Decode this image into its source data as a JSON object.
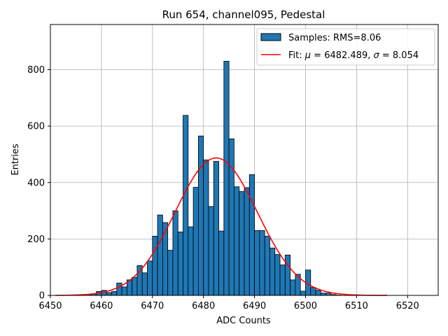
{
  "chart_data": {
    "type": "bar",
    "title": "Run 654, channel095, Pedestal",
    "xlabel": "ADC Counts",
    "ylabel": "Entries",
    "xlim": [
      6450,
      6526
    ],
    "ylim": [
      0,
      960
    ],
    "xticks": [
      6450,
      6460,
      6470,
      6480,
      6490,
      6500,
      6510,
      6520
    ],
    "yticks": [
      0,
      200,
      400,
      600,
      800
    ],
    "grid": true,
    "legend": {
      "placement": "top-right",
      "samples_label": "Samples: RMS=8.06",
      "fit_prefix": "Fit: ",
      "fit_mu_symbol": "μ",
      "fit_mu_value": " = 6482.489, ",
      "fit_sigma_symbol": "σ",
      "fit_sigma_value": " = 8.054"
    },
    "histogram": {
      "name": "Samples: RMS=8.06",
      "color": "#1f77b4",
      "edge_color": "#000000",
      "bin_edges_start": 6457,
      "bin_width": 1,
      "counts": [
        3,
        5,
        14,
        18,
        10,
        14,
        44,
        30,
        55,
        64,
        106,
        80,
        122,
        210,
        285,
        258,
        160,
        300,
        225,
        638,
        243,
        383,
        565,
        480,
        315,
        475,
        228,
        830,
        555,
        385,
        368,
        382,
        428,
        230,
        230,
        210,
        168,
        145,
        108,
        143,
        55,
        75,
        15,
        90,
        28,
        18,
        8,
        8,
        3,
        1
      ]
    },
    "fit": {
      "name": "Fit",
      "color": "#ff0000",
      "mu": 6482.489,
      "sigma": 8.054,
      "amplitude": 487,
      "x_range": [
        6451,
        6516
      ]
    }
  }
}
